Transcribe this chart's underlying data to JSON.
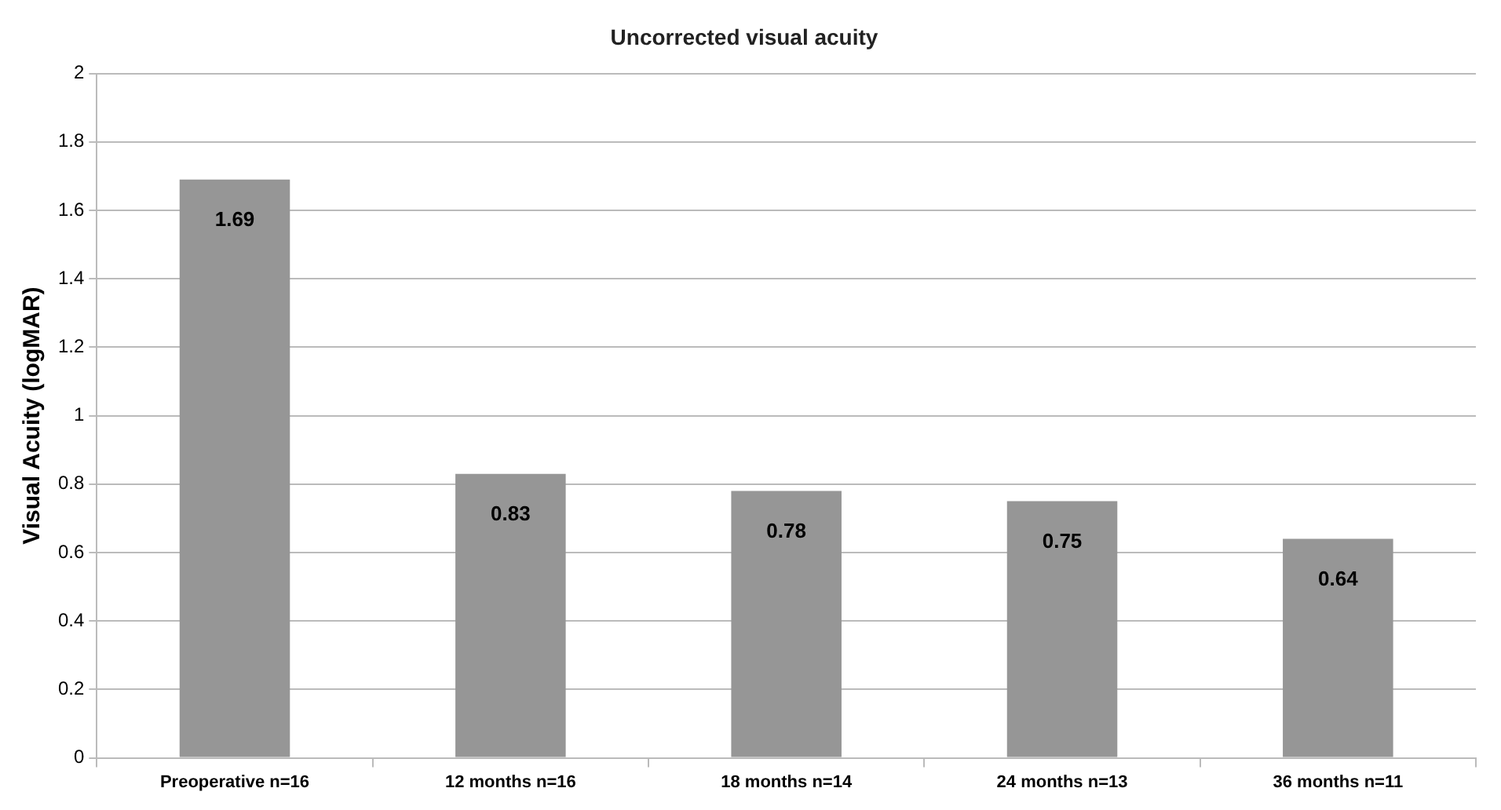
{
  "chart_data": {
    "type": "bar",
    "title": "Uncorrected visual acuity",
    "ylabel": "Visual Acuity (logMAR)",
    "categories": [
      "Preoperative n=16",
      "12 months n=16",
      "18 months n=14",
      "24 months n=13",
      "36 months n=11"
    ],
    "values": [
      1.69,
      0.83,
      0.78,
      0.75,
      0.64
    ],
    "color": "#969696",
    "ylim": [
      0,
      2
    ],
    "yticks": [
      0,
      0.2,
      0.4,
      0.6,
      0.8,
      1,
      1.2,
      1.4,
      1.6,
      1.8,
      2
    ],
    "grid": "y",
    "data_labels": true,
    "legend": false
  }
}
